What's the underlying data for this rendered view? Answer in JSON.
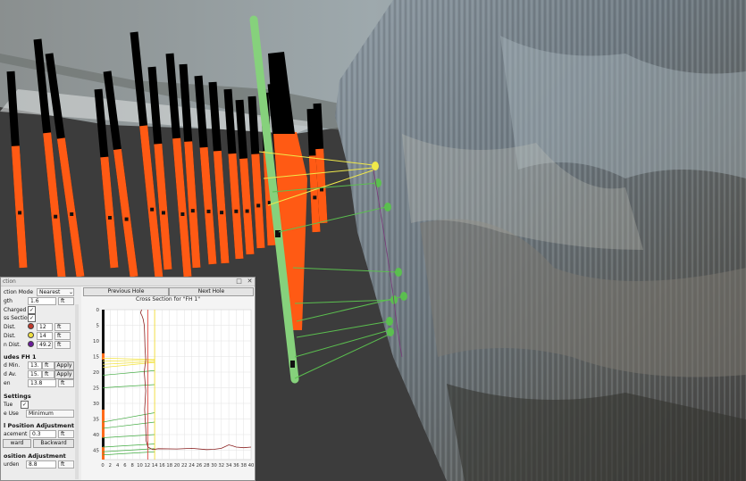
{
  "panel": {
    "title": "ction",
    "close_glyph": "✕",
    "detach_glyph": "□",
    "settings": {
      "selection_mode_label": "ction Mode",
      "selection_mode_value": "Nearest",
      "length_label": "gth",
      "length_value": "1.6",
      "length_unit": "ft",
      "charged_label": "Charged",
      "cross_section_label": "ss Section",
      "dist1_label": "Dist.",
      "dist1_value": "12",
      "dist1_unit": "ft",
      "dist2_label": "Dist.",
      "dist2_value": "14",
      "dist2_unit": "ft",
      "dist3_label": "n Dist.",
      "dist3_value": "49.2",
      "dist3_unit": "ft",
      "dot_colors": [
        "#c0392b",
        "#f0e040",
        "#6a1b9a"
      ],
      "section_title": "udes FH 1",
      "min_label": "d Min.",
      "min_value": "13.",
      "min_unit": "ft",
      "apply_label": "Apply",
      "avg_label": "d Av.",
      "avg_value": "15.",
      "avg_unit": "ft",
      "apply2_label": "Apply",
      "en_label": "en",
      "en_value": "13.8",
      "en_unit": "ft",
      "settings_title": "Settings",
      "true_label": "Tue",
      "use_label": "e Use",
      "use_value": "Minimum",
      "pos_adj_title": "l Position Adjustment",
      "increment_label": "acement",
      "increment_value": "0.3",
      "increment_unit": "ft",
      "forward_label": "ward",
      "backward_label": "Backward",
      "pos_adj2_title": "osition Adjustment",
      "burden_label": "urden",
      "burden_value": "8.8",
      "burden_unit": "ft"
    },
    "nav": {
      "previous": "Previous Hole",
      "next": "Next Hole"
    }
  },
  "chart_data": {
    "type": "line",
    "title": "Cross Section for \"FH 1\"",
    "x_ticks": [
      "0",
      "2",
      "4",
      "6",
      "8",
      "10",
      "12",
      "14",
      "16",
      "18",
      "20",
      "22",
      "24",
      "26",
      "28",
      "30",
      "32",
      "34",
      "36",
      "38",
      "40"
    ],
    "y_ticks": [
      "0",
      "5",
      "10",
      "15",
      "20",
      "25",
      "30",
      "35",
      "40",
      "45"
    ],
    "xlim": [
      0,
      40
    ],
    "ylim": [
      0,
      48
    ],
    "vertical_lines": [
      {
        "x": 12.2,
        "color": "#e53935"
      },
      {
        "x": 14,
        "color": "#f2d81c"
      }
    ],
    "profile": {
      "color": "#8a2020",
      "points": [
        [
          10.5,
          0
        ],
        [
          10.2,
          1
        ],
        [
          10.6,
          2
        ],
        [
          10.9,
          3
        ],
        [
          11.2,
          5
        ],
        [
          11.3,
          8
        ],
        [
          11.4,
          12
        ],
        [
          11.6,
          16
        ],
        [
          11.2,
          20
        ],
        [
          11.6,
          26
        ],
        [
          11.3,
          32
        ],
        [
          11.6,
          38
        ],
        [
          11.7,
          42
        ],
        [
          12.2,
          44
        ],
        [
          13.5,
          44.8
        ],
        [
          15,
          44.5
        ],
        [
          20,
          44.6
        ],
        [
          24,
          44.4
        ],
        [
          28,
          44.8
        ],
        [
          30,
          44.7
        ],
        [
          32,
          44.4
        ],
        [
          34,
          43.3
        ],
        [
          35,
          43.6
        ],
        [
          36,
          44
        ],
        [
          38,
          44.2
        ],
        [
          40,
          44
        ]
      ]
    },
    "hole_charge": [
      {
        "from": 0,
        "to": 14,
        "color": "#111111"
      },
      {
        "from": 14,
        "to": 16,
        "color": "#ff6a1a"
      },
      {
        "from": 16,
        "to": 32,
        "color": "#111111"
      },
      {
        "from": 32,
        "to": 41,
        "color": "#ff6a1a"
      },
      {
        "from": 41,
        "to": 44,
        "color": "#111111"
      },
      {
        "from": 44,
        "to": 48,
        "color": "#ff6a1a"
      }
    ],
    "rays": [
      {
        "y0": 15.5,
        "y1": 16,
        "color": "#f2e23a"
      },
      {
        "y0": 16.5,
        "y1": 16.2,
        "color": "#f2e23a"
      },
      {
        "y0": 17.5,
        "y1": 16.6,
        "color": "#f2e23a"
      },
      {
        "y0": 18.5,
        "y1": 16.9,
        "color": "#f2e23a"
      },
      {
        "y0": 21,
        "y1": 19.5,
        "color": "#3faa3f"
      },
      {
        "y0": 25,
        "y1": 24,
        "color": "#3faa3f"
      },
      {
        "y0": 36,
        "y1": 33,
        "color": "#3faa3f"
      },
      {
        "y0": 38,
        "y1": 36,
        "color": "#3faa3f"
      },
      {
        "y0": 41,
        "y1": 40,
        "color": "#3faa3f"
      },
      {
        "y0": 44,
        "y1": 43,
        "color": "#3faa3f"
      },
      {
        "y0": 45.5,
        "y1": 44.5,
        "color": "#3faa3f"
      },
      {
        "y0": 46.5,
        "y1": 45.5,
        "color": "#3faa3f"
      }
    ]
  }
}
